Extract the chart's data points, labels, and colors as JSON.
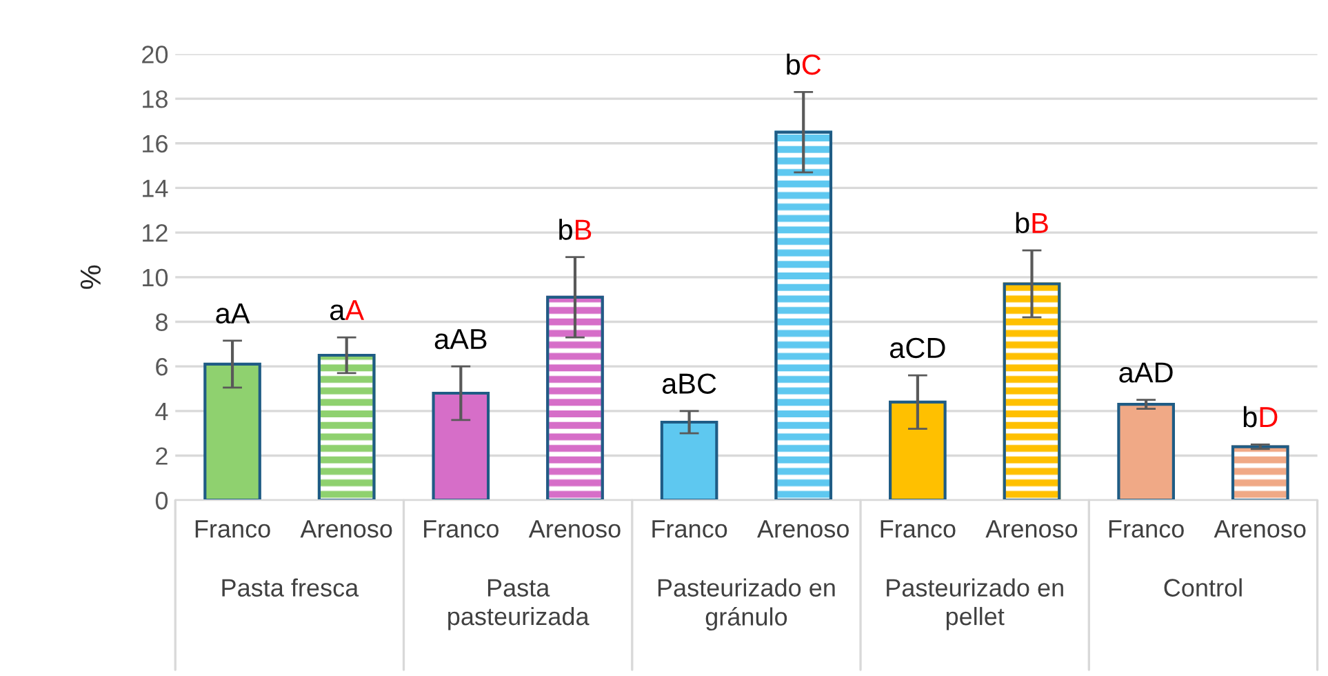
{
  "chart_data": {
    "type": "bar",
    "ylabel": "%",
    "categories": [
      "Franco",
      "Arenoso",
      "Franco",
      "Arenoso",
      "Franco",
      "Arenoso",
      "Franco",
      "Arenoso",
      "Franco",
      "Arenoso"
    ],
    "values": [
      6.1,
      6.5,
      4.8,
      9.1,
      3.5,
      16.5,
      4.4,
      9.7,
      4.3,
      2.4
    ],
    "errors": [
      1.05,
      0.8,
      1.2,
      1.8,
      0.5,
      1.8,
      1.2,
      1.5,
      0.2,
      0.1
    ],
    "colors": [
      "#8fd16f",
      "#8fd16f",
      "#d66ec8",
      "#d66ec8",
      "#5ec8f0",
      "#5ec8f0",
      "#ffc000",
      "#ffc000",
      "#f0a986",
      "#f0a986"
    ],
    "value_labels": [
      "aA",
      "aA",
      "aAB",
      "bB",
      "aBC",
      "bC",
      "aCD",
      "bB",
      "aAD",
      "bD"
    ],
    "annotations": [
      "Pasta fresca",
      "Pasta\npasteurizada",
      "Pasteurizado en\ngránulo",
      "Pasteurizado en\npellet",
      "Control"
    ],
    "ylim": [
      0,
      20
    ],
    "yticks": [
      0,
      2,
      4,
      6,
      8,
      10,
      12,
      14,
      16,
      18,
      20
    ],
    "grid": "y"
  }
}
